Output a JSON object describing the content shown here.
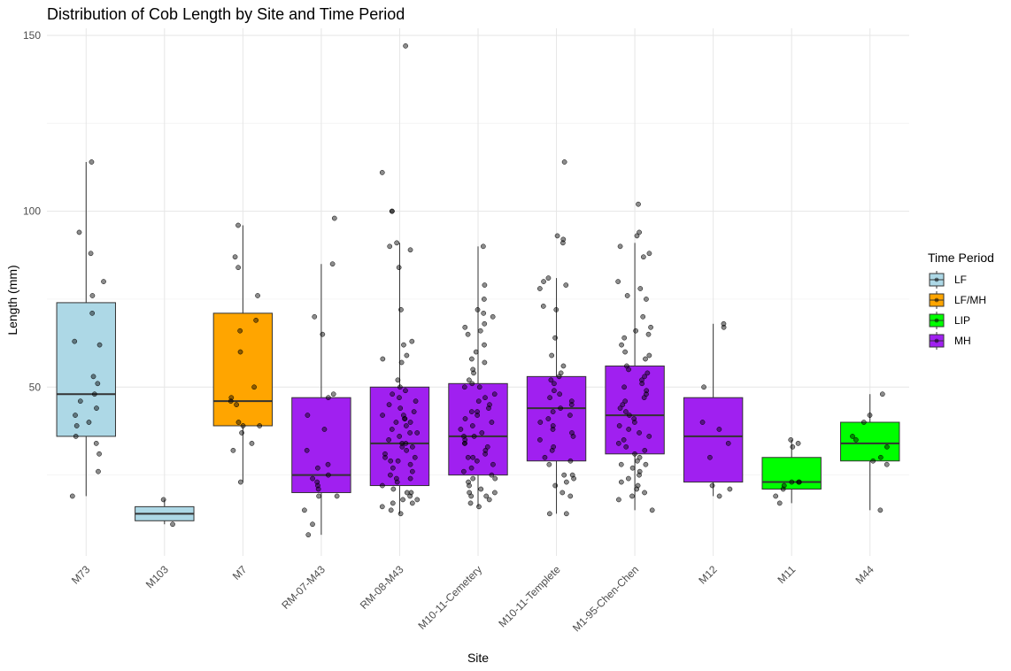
{
  "chart_data": {
    "type": "boxplot",
    "title": "Distribution of Cob Length by Site and Time Period",
    "xlabel": "Site",
    "ylabel": "Length (mm)",
    "ylim": [
      2,
      152
    ],
    "yticks": [
      50,
      100,
      150
    ],
    "grid": true,
    "legend": {
      "title": "Time Period",
      "position": "right",
      "entries": [
        {
          "name": "LF",
          "color": "#ADD8E6"
        },
        {
          "name": "LF/MH",
          "color": "#FFA500"
        },
        {
          "name": "LIP",
          "color": "#00FF00"
        },
        {
          "name": "MH",
          "color": "#A020F0"
        }
      ]
    },
    "categories": [
      "M73",
      "M103",
      "M7",
      "RM-07-M43",
      "RM-08-M43",
      "M10-11-Cemetery",
      "M10-11-Templete",
      "M1-95-Chen-Chen",
      "M12",
      "M11",
      "M44"
    ],
    "boxes": [
      {
        "site": "M73",
        "period": "LF",
        "min": 19,
        "q1": 36,
        "median": 48,
        "q3": 74,
        "max": 114
      },
      {
        "site": "M103",
        "period": "LF",
        "min": 11,
        "q1": 12,
        "median": 14,
        "q3": 16,
        "max": 18
      },
      {
        "site": "M7",
        "period": "LF/MH",
        "min": 23,
        "q1": 39,
        "median": 46,
        "q3": 71,
        "max": 96
      },
      {
        "site": "RM-07-M43",
        "period": "MH",
        "min": 8,
        "q1": 20,
        "median": 25,
        "q3": 47,
        "max": 85
      },
      {
        "site": "RM-08-M43",
        "period": "MH",
        "min": 14,
        "q1": 22,
        "median": 34,
        "q3": 50,
        "max": 91
      },
      {
        "site": "M10-11-Cemetery",
        "period": "MH",
        "min": 16,
        "q1": 25,
        "median": 36,
        "q3": 51,
        "max": 90
      },
      {
        "site": "M10-11-Templete",
        "period": "MH",
        "min": 14,
        "q1": 29,
        "median": 44,
        "q3": 53,
        "max": 81
      },
      {
        "site": "M1-95-Chen-Chen",
        "period": "MH",
        "min": 15,
        "q1": 31,
        "median": 42,
        "q3": 56,
        "max": 91
      },
      {
        "site": "M12",
        "period": "MH",
        "min": 19,
        "q1": 23,
        "median": 36,
        "q3": 47,
        "max": 68
      },
      {
        "site": "M11",
        "period": "LIP",
        "min": 17,
        "q1": 21,
        "median": 23,
        "q3": 30,
        "max": 35
      },
      {
        "site": "M44",
        "period": "LIP",
        "min": 15,
        "q1": 29,
        "median": 34,
        "q3": 40,
        "max": 48
      }
    ],
    "points": [
      {
        "site": "M73",
        "y": [
          114,
          94,
          88,
          80,
          76,
          71,
          63,
          62,
          53,
          51,
          48,
          46,
          44,
          42,
          40,
          39,
          36,
          34,
          31,
          26,
          19
        ]
      },
      {
        "site": "M103",
        "y": [
          18,
          11
        ]
      },
      {
        "site": "M7",
        "y": [
          96,
          87,
          84,
          76,
          69,
          66,
          60,
          50,
          47,
          46,
          45,
          40,
          39,
          39,
          37,
          34,
          32,
          23
        ]
      },
      {
        "site": "RM-07-M43",
        "y": [
          98,
          85,
          70,
          65,
          48,
          47,
          42,
          38,
          32,
          28,
          27,
          25,
          24,
          23,
          22,
          21,
          19,
          19,
          15,
          11,
          8
        ]
      },
      {
        "site": "RM-08-M43",
        "y": [
          147,
          111,
          100,
          100,
          91,
          90,
          89,
          84,
          72,
          63,
          62,
          59,
          58,
          57,
          52,
          50,
          49,
          48,
          47,
          46,
          45,
          44,
          43,
          42,
          42,
          41,
          41,
          40,
          40,
          39,
          38,
          37,
          37,
          36,
          35,
          34,
          34,
          33,
          33,
          32,
          31,
          30,
          30,
          29,
          29,
          28,
          27,
          26,
          25,
          24,
          24,
          23,
          22,
          21,
          20,
          20,
          19,
          18,
          18,
          17,
          17,
          16,
          15,
          14
        ]
      },
      {
        "site": "M10-11-Cemetery",
        "y": [
          90,
          79,
          75,
          72,
          71,
          70,
          68,
          67,
          66,
          65,
          62,
          60,
          58,
          57,
          55,
          54,
          52,
          51,
          50,
          50,
          48,
          47,
          46,
          45,
          44,
          43,
          43,
          42,
          41,
          40,
          39,
          38,
          37,
          36,
          36,
          35,
          34,
          34,
          33,
          32,
          31,
          30,
          30,
          29,
          28,
          27,
          26,
          25,
          24,
          24,
          23,
          22,
          21,
          20,
          20,
          19,
          19,
          18,
          17,
          16
        ]
      },
      {
        "site": "M10-11-Templete",
        "y": [
          114,
          93,
          92,
          91,
          81,
          80,
          79,
          78,
          73,
          72,
          64,
          59,
          56,
          54,
          53,
          52,
          51,
          49,
          48,
          47,
          46,
          45,
          44,
          43,
          42,
          41,
          40,
          39,
          38,
          37,
          36,
          35,
          33,
          32,
          30,
          29,
          28,
          25,
          25,
          24,
          23,
          22,
          20,
          19,
          14,
          14
        ]
      },
      {
        "site": "M1-95-Chen-Chen",
        "y": [
          102,
          94,
          93,
          90,
          88,
          87,
          80,
          78,
          76,
          75,
          70,
          67,
          66,
          65,
          64,
          62,
          60,
          59,
          58,
          56,
          55,
          54,
          53,
          52,
          51,
          50,
          49,
          48,
          47,
          46,
          45,
          44,
          43,
          42,
          41,
          40,
          39,
          38,
          37,
          36,
          35,
          34,
          33,
          32,
          31,
          30,
          29,
          28,
          28,
          27,
          26,
          25,
          24,
          23,
          22,
          21,
          20,
          19,
          18,
          15
        ]
      },
      {
        "site": "M12",
        "y": [
          68,
          67,
          50,
          40,
          38,
          34,
          30,
          22,
          21,
          19
        ]
      },
      {
        "site": "M11",
        "y": [
          35,
          34,
          33,
          23,
          23,
          23,
          22,
          21,
          19,
          17
        ]
      },
      {
        "site": "M44",
        "y": [
          48,
          42,
          40,
          36,
          35,
          33,
          30,
          29,
          28,
          15
        ]
      }
    ]
  }
}
